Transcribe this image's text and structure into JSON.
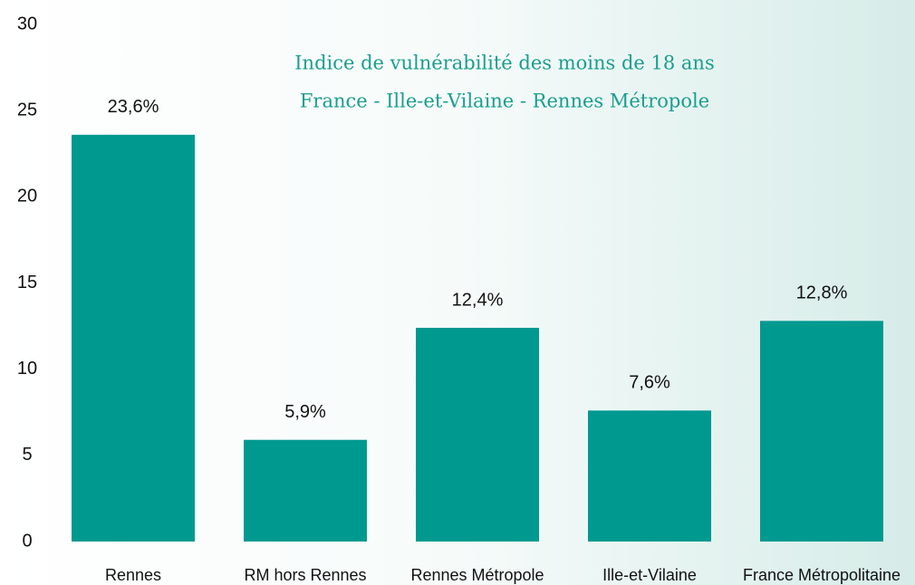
{
  "chart_data": {
    "type": "bar",
    "title": "Indice de vulnérabilité des moins de 18 ans",
    "subtitle": "France - Ille-et-Vilaine - Rennes Métropole",
    "categories": [
      "Rennes",
      "RM hors Rennes",
      "Rennes Métropole",
      "Ille-et-Vilaine",
      "France Métropolitaine"
    ],
    "values": [
      23.6,
      5.9,
      12.4,
      7.6,
      12.8
    ],
    "value_labels": [
      "23,6%",
      "5,9%",
      "12,4%",
      "7,6%",
      "12,8%"
    ],
    "color": "#009990",
    "ylim": [
      0,
      30
    ],
    "yticks": [
      0,
      5,
      10,
      15,
      20,
      25,
      30
    ],
    "grid": false
  }
}
